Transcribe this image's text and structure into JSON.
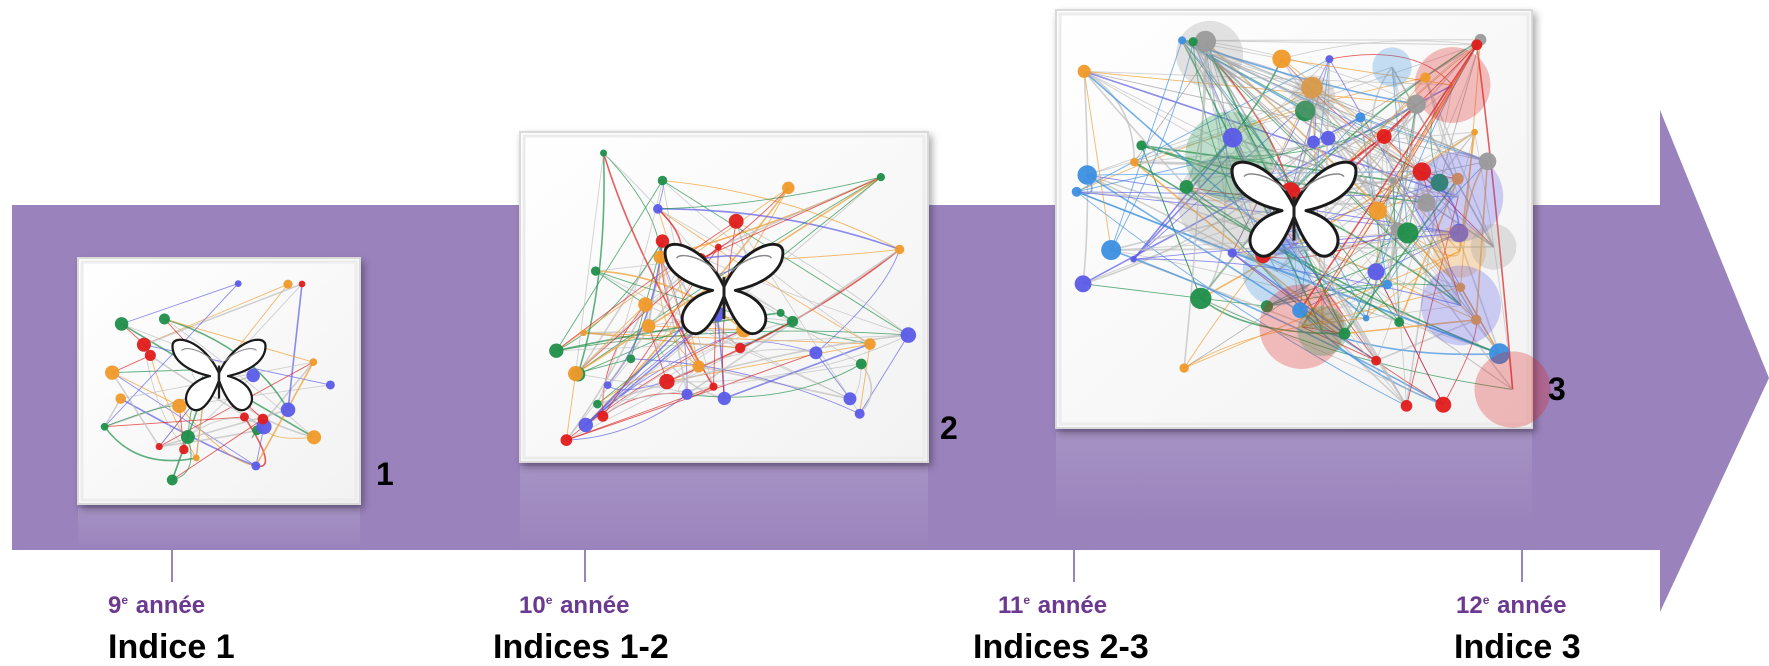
{
  "colors": {
    "arrow": "#9a83bc",
    "year_text": "#6b3a90",
    "indice_text": "#000000",
    "panel_bg": "#ffffff",
    "network_blue": "#5b5be8",
    "network_green": "#1f8f4a",
    "network_red": "#e01b1b",
    "network_orange": "#f09a2a",
    "network_lightblue": "#3b8fe0",
    "network_gray": "#9a9a9a"
  },
  "stages": [
    {
      "year_num": "9",
      "year_sup": "e",
      "year_word": "année",
      "indice": "Indice 1",
      "panel_number": "1",
      "icon": "butterfly-icon"
    },
    {
      "year_num": "10",
      "year_sup": "e",
      "year_word": "année",
      "indice": "Indices 1-2",
      "panel_number": "2",
      "icon": "butterfly-icon"
    },
    {
      "year_num": "11",
      "year_sup": "e",
      "year_word": "année",
      "indice": "Indices 2-3",
      "panel_number": "3",
      "icon": "butterfly-icon"
    },
    {
      "year_num": "12",
      "year_sup": "e",
      "year_word": "année",
      "indice": "Indice 3",
      "icon": ""
    }
  ]
}
